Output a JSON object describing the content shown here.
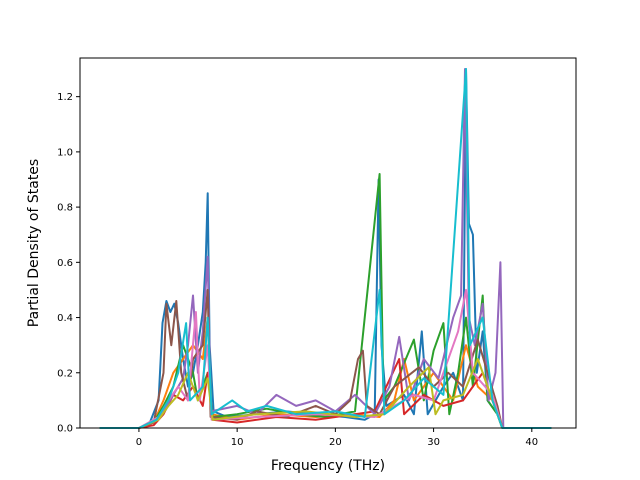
{
  "chart_data": {
    "type": "line",
    "title": "",
    "xlabel": "Frequency (THz)",
    "ylabel": "Partial Density of States",
    "xlim": [
      -6,
      44.5
    ],
    "ylim": [
      0,
      1.34
    ],
    "xticks": [
      0,
      10,
      20,
      30,
      40
    ],
    "yticks": [
      0.0,
      0.2,
      0.4,
      0.6,
      0.8,
      1.0,
      1.2
    ],
    "grid": false,
    "legend": "none",
    "series": [
      {
        "color": "#1f77b4",
        "values": [
          [
            -4.0,
            0.0
          ],
          [
            0.0,
            0.0
          ],
          [
            1.0,
            0.01
          ],
          [
            2.0,
            0.1
          ],
          [
            2.4,
            0.38
          ],
          [
            2.8,
            0.46
          ],
          [
            3.2,
            0.42
          ],
          [
            3.6,
            0.45
          ],
          [
            4.0,
            0.38
          ],
          [
            4.5,
            0.25
          ],
          [
            5.0,
            0.15
          ],
          [
            5.5,
            0.2
          ],
          [
            6.0,
            0.3
          ],
          [
            6.5,
            0.42
          ],
          [
            6.8,
            0.6
          ],
          [
            7.0,
            0.85
          ],
          [
            7.2,
            0.3
          ],
          [
            7.6,
            0.06
          ],
          [
            9.0,
            0.04
          ],
          [
            12.0,
            0.05
          ],
          [
            15.0,
            0.06
          ],
          [
            18.0,
            0.05
          ],
          [
            21.0,
            0.04
          ],
          [
            23.0,
            0.03
          ],
          [
            24.0,
            0.05
          ],
          [
            24.4,
            0.9
          ],
          [
            24.7,
            0.3
          ],
          [
            25.2,
            0.08
          ],
          [
            27.0,
            0.12
          ],
          [
            28.0,
            0.05
          ],
          [
            28.8,
            0.35
          ],
          [
            29.4,
            0.05
          ],
          [
            31.0,
            0.15
          ],
          [
            32.0,
            0.2
          ],
          [
            33.0,
            0.1
          ],
          [
            33.3,
            1.3
          ],
          [
            33.6,
            0.74
          ],
          [
            34.0,
            0.7
          ],
          [
            34.4,
            0.2
          ],
          [
            35.0,
            0.35
          ],
          [
            35.5,
            0.1
          ],
          [
            36.5,
            0.05
          ],
          [
            37.0,
            0.0
          ],
          [
            42.0,
            0.0
          ]
        ]
      },
      {
        "color": "#ff7f0e",
        "values": [
          [
            -4.0,
            0.0
          ],
          [
            0.0,
            0.0
          ],
          [
            1.5,
            0.02
          ],
          [
            2.5,
            0.1
          ],
          [
            3.5,
            0.2
          ],
          [
            4.5,
            0.25
          ],
          [
            5.5,
            0.3
          ],
          [
            6.5,
            0.25
          ],
          [
            7.0,
            0.4
          ],
          [
            7.4,
            0.05
          ],
          [
            10.0,
            0.03
          ],
          [
            14.0,
            0.05
          ],
          [
            18.0,
            0.04
          ],
          [
            22.0,
            0.05
          ],
          [
            24.5,
            0.04
          ],
          [
            26.0,
            0.1
          ],
          [
            27.0,
            0.25
          ],
          [
            28.0,
            0.1
          ],
          [
            30.0,
            0.2
          ],
          [
            32.0,
            0.1
          ],
          [
            33.3,
            0.3
          ],
          [
            34.5,
            0.15
          ],
          [
            36.0,
            0.1
          ],
          [
            37.0,
            0.0
          ],
          [
            42.0,
            0.0
          ]
        ]
      },
      {
        "color": "#2ca02c",
        "values": [
          [
            -4.0,
            0.0
          ],
          [
            0.0,
            0.0
          ],
          [
            1.5,
            0.02
          ],
          [
            2.5,
            0.08
          ],
          [
            3.5,
            0.15
          ],
          [
            4.5,
            0.3
          ],
          [
            5.5,
            0.2
          ],
          [
            6.0,
            0.1
          ],
          [
            7.0,
            0.2
          ],
          [
            7.5,
            0.04
          ],
          [
            10.0,
            0.05
          ],
          [
            13.0,
            0.07
          ],
          [
            16.0,
            0.05
          ],
          [
            19.0,
            0.04
          ],
          [
            22.0,
            0.06
          ],
          [
            24.5,
            0.92
          ],
          [
            24.9,
            0.1
          ],
          [
            26.0,
            0.15
          ],
          [
            28.0,
            0.32
          ],
          [
            29.0,
            0.1
          ],
          [
            30.0,
            0.28
          ],
          [
            31.0,
            0.38
          ],
          [
            31.6,
            0.05
          ],
          [
            32.5,
            0.2
          ],
          [
            33.3,
            0.4
          ],
          [
            34.0,
            0.15
          ],
          [
            35.0,
            0.48
          ],
          [
            35.5,
            0.1
          ],
          [
            36.5,
            0.05
          ],
          [
            37.0,
            0.0
          ],
          [
            42.0,
            0.0
          ]
        ]
      },
      {
        "color": "#d62728",
        "values": [
          [
            -4.0,
            0.0
          ],
          [
            0.0,
            0.0
          ],
          [
            1.5,
            0.01
          ],
          [
            2.5,
            0.05
          ],
          [
            3.5,
            0.12
          ],
          [
            4.5,
            0.1
          ],
          [
            5.5,
            0.15
          ],
          [
            6.5,
            0.08
          ],
          [
            7.0,
            0.2
          ],
          [
            7.5,
            0.03
          ],
          [
            10.0,
            0.02
          ],
          [
            14.0,
            0.04
          ],
          [
            18.0,
            0.03
          ],
          [
            22.0,
            0.05
          ],
          [
            24.0,
            0.06
          ],
          [
            26.5,
            0.25
          ],
          [
            27.0,
            0.05
          ],
          [
            29.0,
            0.12
          ],
          [
            31.0,
            0.08
          ],
          [
            33.0,
            0.1
          ],
          [
            35.0,
            0.2
          ],
          [
            36.5,
            0.05
          ],
          [
            37.0,
            0.0
          ],
          [
            42.0,
            0.0
          ]
        ]
      },
      {
        "color": "#9467bd",
        "values": [
          [
            -4.0,
            0.0
          ],
          [
            0.0,
            0.0
          ],
          [
            1.5,
            0.02
          ],
          [
            2.5,
            0.06
          ],
          [
            3.5,
            0.12
          ],
          [
            4.5,
            0.18
          ],
          [
            5.0,
            0.3
          ],
          [
            5.5,
            0.48
          ],
          [
            6.0,
            0.2
          ],
          [
            6.5,
            0.35
          ],
          [
            7.0,
            0.62
          ],
          [
            7.3,
            0.06
          ],
          [
            10.0,
            0.08
          ],
          [
            12.0,
            0.05
          ],
          [
            14.0,
            0.12
          ],
          [
            16.0,
            0.08
          ],
          [
            18.0,
            0.1
          ],
          [
            20.0,
            0.06
          ],
          [
            22.0,
            0.12
          ],
          [
            24.0,
            0.05
          ],
          [
            25.5,
            0.15
          ],
          [
            26.5,
            0.33
          ],
          [
            27.5,
            0.1
          ],
          [
            29.0,
            0.25
          ],
          [
            30.5,
            0.18
          ],
          [
            32.0,
            0.4
          ],
          [
            32.8,
            0.48
          ],
          [
            33.2,
            1.3
          ],
          [
            33.6,
            0.4
          ],
          [
            34.2,
            0.3
          ],
          [
            35.0,
            0.45
          ],
          [
            35.6,
            0.1
          ],
          [
            36.3,
            0.2
          ],
          [
            36.8,
            0.6
          ],
          [
            37.1,
            0.0
          ],
          [
            42.0,
            0.0
          ]
        ]
      },
      {
        "color": "#8c564b",
        "values": [
          [
            -4.0,
            0.0
          ],
          [
            0.0,
            0.0
          ],
          [
            1.5,
            0.02
          ],
          [
            2.5,
            0.2
          ],
          [
            2.8,
            0.45
          ],
          [
            3.3,
            0.3
          ],
          [
            3.8,
            0.46
          ],
          [
            4.3,
            0.2
          ],
          [
            5.0,
            0.1
          ],
          [
            5.5,
            0.25
          ],
          [
            6.5,
            0.3
          ],
          [
            7.0,
            0.5
          ],
          [
            7.3,
            0.04
          ],
          [
            10.0,
            0.03
          ],
          [
            12.0,
            0.06
          ],
          [
            15.0,
            0.04
          ],
          [
            18.0,
            0.08
          ],
          [
            20.0,
            0.05
          ],
          [
            21.5,
            0.1
          ],
          [
            22.3,
            0.25
          ],
          [
            22.8,
            0.28
          ],
          [
            23.2,
            0.08
          ],
          [
            24.5,
            0.05
          ],
          [
            26.0,
            0.15
          ],
          [
            28.5,
            0.22
          ],
          [
            30.0,
            0.15
          ],
          [
            31.5,
            0.2
          ],
          [
            33.0,
            0.15
          ],
          [
            34.5,
            0.32
          ],
          [
            35.5,
            0.2
          ],
          [
            36.5,
            0.08
          ],
          [
            37.0,
            0.0
          ],
          [
            42.0,
            0.0
          ]
        ]
      },
      {
        "color": "#e377c2",
        "values": [
          [
            -4.0,
            0.0
          ],
          [
            0.0,
            0.0
          ],
          [
            2.0,
            0.04
          ],
          [
            3.0,
            0.1
          ],
          [
            4.0,
            0.15
          ],
          [
            5.0,
            0.1
          ],
          [
            5.8,
            0.42
          ],
          [
            6.2,
            0.1
          ],
          [
            7.0,
            0.3
          ],
          [
            7.4,
            0.03
          ],
          [
            12.0,
            0.04
          ],
          [
            18.0,
            0.05
          ],
          [
            24.0,
            0.04
          ],
          [
            26.0,
            0.08
          ],
          [
            28.0,
            0.12
          ],
          [
            30.0,
            0.1
          ],
          [
            32.5,
            0.35
          ],
          [
            33.3,
            0.5
          ],
          [
            34.0,
            0.2
          ],
          [
            36.0,
            0.12
          ],
          [
            37.0,
            0.0
          ],
          [
            42.0,
            0.0
          ]
        ]
      },
      {
        "color": "#bcbd22",
        "values": [
          [
            -4.0,
            0.0
          ],
          [
            0.0,
            0.0
          ],
          [
            2.0,
            0.03
          ],
          [
            3.0,
            0.08
          ],
          [
            4.0,
            0.12
          ],
          [
            5.0,
            0.2
          ],
          [
            6.0,
            0.1
          ],
          [
            7.0,
            0.18
          ],
          [
            7.5,
            0.03
          ],
          [
            12.0,
            0.05
          ],
          [
            17.0,
            0.06
          ],
          [
            22.0,
            0.04
          ],
          [
            25.0,
            0.05
          ],
          [
            27.5,
            0.15
          ],
          [
            29.5,
            0.22
          ],
          [
            30.2,
            0.05
          ],
          [
            31.0,
            0.1
          ],
          [
            33.0,
            0.12
          ],
          [
            34.5,
            0.25
          ],
          [
            36.0,
            0.1
          ],
          [
            37.0,
            0.0
          ],
          [
            42.0,
            0.0
          ]
        ]
      },
      {
        "color": "#17becf",
        "values": [
          [
            -4.0,
            0.0
          ],
          [
            0.0,
            0.0
          ],
          [
            1.8,
            0.03
          ],
          [
            3.0,
            0.1
          ],
          [
            4.0,
            0.2
          ],
          [
            4.8,
            0.38
          ],
          [
            5.2,
            0.1
          ],
          [
            6.5,
            0.15
          ],
          [
            7.0,
            0.4
          ],
          [
            7.4,
            0.05
          ],
          [
            9.5,
            0.1
          ],
          [
            11.0,
            0.06
          ],
          [
            13.0,
            0.08
          ],
          [
            16.0,
            0.05
          ],
          [
            20.0,
            0.06
          ],
          [
            23.0,
            0.04
          ],
          [
            24.5,
            0.5
          ],
          [
            25.0,
            0.05
          ],
          [
            27.0,
            0.1
          ],
          [
            29.0,
            0.18
          ],
          [
            31.0,
            0.12
          ],
          [
            33.3,
            1.3
          ],
          [
            33.7,
            0.3
          ],
          [
            35.0,
            0.4
          ],
          [
            36.0,
            0.1
          ],
          [
            37.0,
            0.0
          ],
          [
            42.0,
            0.0
          ]
        ]
      }
    ]
  }
}
